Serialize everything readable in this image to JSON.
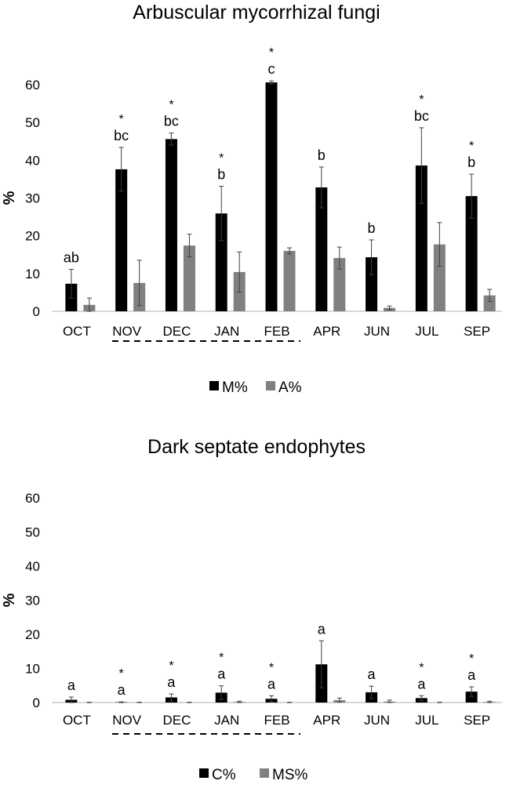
{
  "colors": {
    "series1": "#000000",
    "series2": "#808080",
    "axis": "#bfbfbf",
    "errorbar": "#404040"
  },
  "chart_data": [
    {
      "type": "bar",
      "title": "Arbuscular mycorrhizal fungi",
      "ylabel": "%",
      "xlabel": "",
      "ylim": [
        0,
        60
      ],
      "yticks": [
        0,
        10,
        20,
        30,
        40,
        50,
        60
      ],
      "grid": false,
      "legend_position": "bottom",
      "categories": [
        "OCT",
        "NOV",
        "DEC",
        "JAN",
        "FEB",
        "APR",
        "JUN",
        "JUL",
        "SEP"
      ],
      "underlined_categories": [
        "NOV",
        "DEC",
        "JAN",
        "FEB"
      ],
      "series": [
        {
          "name": "M%",
          "values": [
            7.3,
            37.6,
            45.6,
            25.9,
            60.6,
            32.8,
            14.3,
            38.6,
            30.5
          ],
          "errors": [
            3.8,
            5.8,
            1.6,
            7.2,
            0.4,
            5.4,
            4.6,
            10.0,
            5.8
          ]
        },
        {
          "name": "A%",
          "values": [
            1.7,
            7.5,
            17.4,
            10.4,
            16.0,
            14.1,
            0.9,
            17.7,
            4.2
          ],
          "errors": [
            1.8,
            6.0,
            3.0,
            5.3,
            0.8,
            2.9,
            0.5,
            5.8,
            1.6
          ]
        }
      ],
      "letters": [
        "ab",
        "bc",
        "bc",
        "b",
        "c",
        "b",
        "b",
        "bc",
        "b"
      ],
      "stars": [
        "",
        "*",
        "*",
        "*",
        "*",
        "",
        "",
        "*",
        "*"
      ]
    },
    {
      "type": "bar",
      "title": "Dark septate endophytes",
      "ylabel": "%",
      "xlabel": "",
      "ylim": [
        0,
        60
      ],
      "yticks": [
        0,
        10,
        20,
        30,
        40,
        50,
        60
      ],
      "grid": false,
      "legend_position": "bottom",
      "categories": [
        "OCT",
        "NOV",
        "DEC",
        "JAN",
        "FEB",
        "APR",
        "JUN",
        "JUL",
        "SEP"
      ],
      "underlined_categories": [
        "NOV",
        "DEC",
        "JAN",
        "FEB"
      ],
      "series": [
        {
          "name": "C%",
          "values": [
            0.8,
            0.1,
            1.5,
            2.9,
            1.1,
            11.2,
            3.0,
            1.3,
            3.2
          ],
          "errors": [
            0.8,
            0.1,
            1.0,
            2.0,
            0.9,
            6.9,
            1.8,
            0.7,
            1.4
          ]
        },
        {
          "name": "MS%",
          "values": [
            0.0,
            0.0,
            0.0,
            0.2,
            0.0,
            0.7,
            0.3,
            0.0,
            0.2
          ],
          "errors": [
            0.1,
            0.1,
            0.1,
            0.2,
            0.1,
            0.6,
            0.4,
            0.1,
            0.2
          ]
        }
      ],
      "letters": [
        "a",
        "a",
        "a",
        "a",
        "a",
        "a",
        "a",
        "a",
        "a"
      ],
      "stars": [
        "",
        "*",
        "*",
        "*",
        "*",
        "",
        "",
        "*",
        "*"
      ]
    }
  ]
}
